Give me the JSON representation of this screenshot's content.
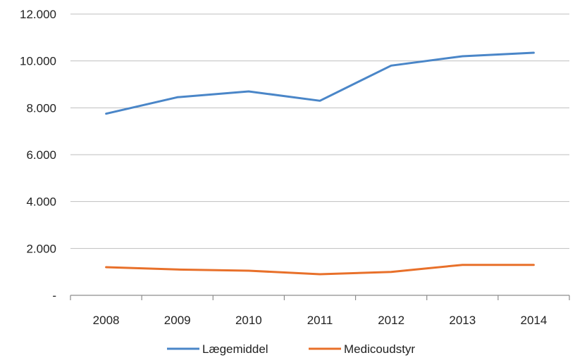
{
  "chart_data": {
    "type": "line",
    "categories": [
      "2008",
      "2009",
      "2010",
      "2011",
      "2012",
      "2013",
      "2014"
    ],
    "series": [
      {
        "name": "Lægemiddel",
        "color": "#4a86c8",
        "values": [
          7750,
          8450,
          8700,
          8300,
          9800,
          10200,
          10350
        ]
      },
      {
        "name": "Medicoudstyr",
        "color": "#e8702a",
        "values": [
          1200,
          1100,
          1050,
          900,
          1000,
          1300,
          1300
        ]
      }
    ],
    "ylim": [
      0,
      12000
    ],
    "yticks": [
      0,
      2000,
      4000,
      6000,
      8000,
      10000,
      12000
    ],
    "ytick_labels": [
      "-",
      "2.000",
      "4.000",
      "6.000",
      "8.000",
      "10.000",
      "12.000"
    ],
    "xlabel": "",
    "ylabel": "",
    "grid": true,
    "legend_position": "bottom"
  }
}
